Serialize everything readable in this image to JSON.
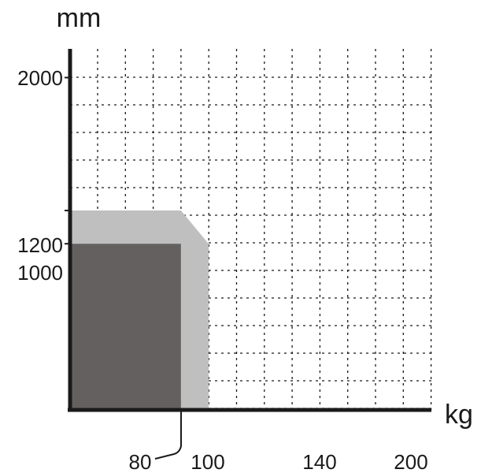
{
  "chart_data": {
    "type": "area",
    "xlabel": "kg",
    "ylabel": "mm",
    "x_ticks": [
      "80",
      "100",
      "140",
      "200"
    ],
    "y_ticks": [
      "1000",
      "1200",
      "2000"
    ],
    "xlim": [
      0,
      130
    ],
    "ylim": [
      0,
      2400
    ],
    "grid": true,
    "series": [
      {
        "color": "#bfbfbf",
        "points": [
          [
            0,
            1200
          ],
          [
            80,
            1200
          ],
          [
            100,
            1000
          ],
          [
            100,
            0
          ],
          [
            0,
            0
          ]
        ]
      },
      {
        "color": "#646060",
        "points": [
          [
            0,
            1000
          ],
          [
            80,
            1000
          ],
          [
            80,
            0
          ],
          [
            0,
            0
          ]
        ]
      }
    ],
    "colors": {
      "axis": "#1a1a1a",
      "grid": "#1a1a1a"
    }
  }
}
